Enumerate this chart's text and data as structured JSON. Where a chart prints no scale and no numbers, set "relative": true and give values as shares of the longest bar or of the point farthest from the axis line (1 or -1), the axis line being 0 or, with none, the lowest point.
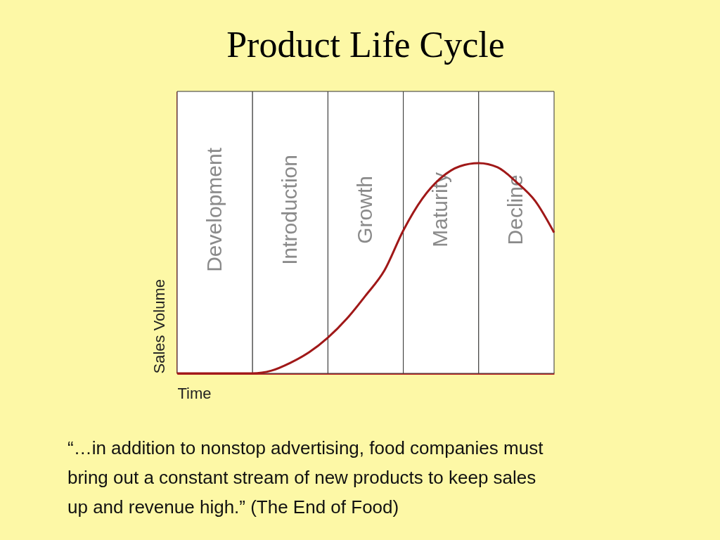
{
  "chart_data": {
    "type": "line",
    "title": "Product Life Cycle",
    "xlabel": "Time",
    "ylabel": "Sales Volume",
    "relative": true,
    "categories": [
      null,
      null,
      null,
      null,
      null,
      null,
      null,
      null,
      null,
      null,
      null,
      null,
      null,
      null,
      null,
      null,
      null,
      null,
      null,
      null,
      null
    ],
    "series": [
      {
        "color": "#a01818",
        "values": [
          0,
          0,
          0,
          0,
          0,
          0.013,
          0.05,
          0.1,
          0.17,
          0.26,
          0.37,
          0.49,
          0.68,
          0.83,
          0.93,
          0.985,
          1,
          0.98,
          0.91,
          0.82,
          0.67
        ]
      }
    ],
    "annotations": [
      "Development",
      "Introduction",
      "Growth",
      "Maturity",
      "Decline",
      "“…in addition to nonstop advertising, food companies must bring out a constant stream of new products to keep sales up and revenue high.”  (The End of Food)"
    ]
  }
}
